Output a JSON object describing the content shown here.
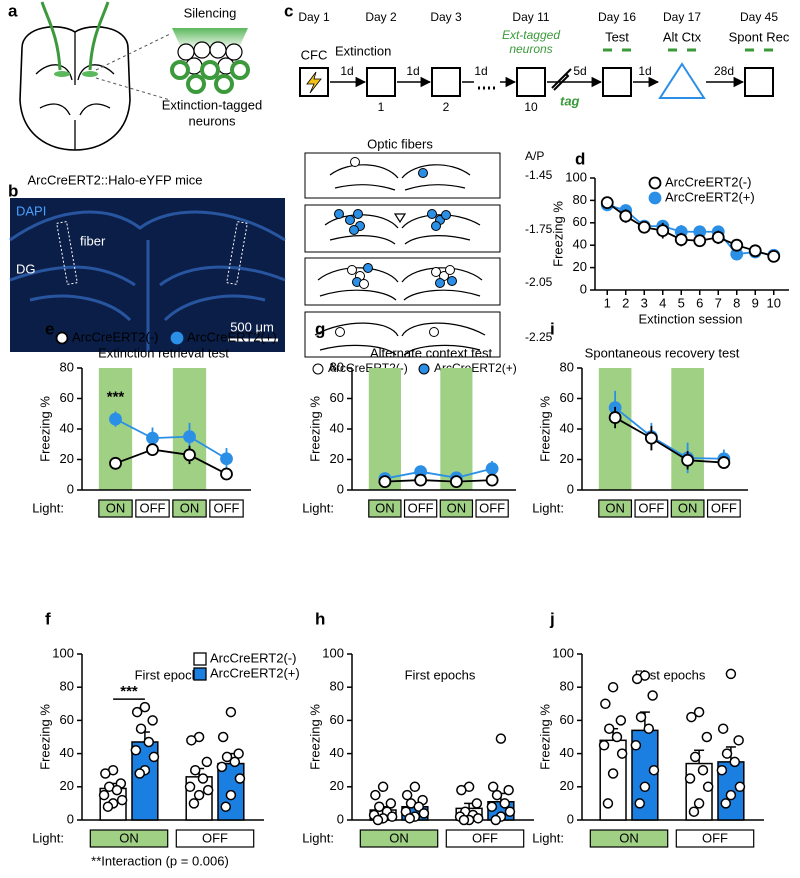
{
  "panel_a": {
    "label": "a",
    "silencing": "Silencing",
    "tagged": [
      "Extinction-tagged",
      "neurons"
    ],
    "mice": "ArcCreERT2::Halo-eYFP mice"
  },
  "panel_b": {
    "label": "b",
    "stain": "DAPI",
    "fiber": "fiber",
    "region": "DG",
    "scale": "500 μm"
  },
  "panel_c": {
    "label": "c",
    "days": [
      "Day 1",
      "Day 2",
      "Day 3",
      "Day 11",
      "Day 16",
      "Day 17",
      "Day 45"
    ],
    "cfc": "CFC",
    "extinction": "Extinction",
    "sessions": [
      "1",
      "2",
      "10"
    ],
    "ext_tagged": [
      "Ext-tagged",
      "neurons"
    ],
    "tag": "tag",
    "intervals": [
      "1d",
      "1d",
      "1d",
      "5d",
      "1d",
      "28d"
    ],
    "stages": [
      "Test",
      "Alt Ctx",
      "Spont Rec"
    ],
    "fibers_title": "Optic fibers",
    "ap": "A/P",
    "ap_levels": [
      "-1.45",
      "-1.75",
      "-2.05",
      "-2.25"
    ],
    "legend": [
      "ArcCreERT2(-)",
      "ArcCreERT2(+)"
    ]
  },
  "chart_data": [
    {
      "panel": "d",
      "type": "line",
      "ylabel": "Freezing %",
      "xlabel": "Extinction session",
      "x": [
        1,
        2,
        3,
        4,
        5,
        6,
        7,
        8,
        9,
        10
      ],
      "xlim": [
        0.5,
        10.5
      ],
      "xticks": [
        1,
        2,
        3,
        4,
        5,
        6,
        7,
        8,
        9,
        10
      ],
      "ylim": [
        0,
        100
      ],
      "yticks": [
        0,
        20,
        40,
        60,
        80,
        100
      ],
      "legend": "upper right",
      "series": [
        {
          "name": "ArcCreERT2(-)",
          "color": "#000000",
          "marker_fill": "#ffffff",
          "values": [
            78,
            66,
            56,
            53,
            45,
            44,
            47,
            40,
            35,
            30
          ],
          "errors": [
            4,
            6,
            5,
            7,
            6,
            5,
            6,
            4,
            4,
            4
          ]
        },
        {
          "name": "ArcCreERT2(+)",
          "color": "#2b8fe6",
          "marker_fill": "#2b8fe6",
          "values": [
            76,
            71,
            57,
            57,
            52,
            52,
            52,
            32,
            34,
            31
          ],
          "errors": [
            4,
            5,
            5,
            5,
            6,
            5,
            5,
            5,
            4,
            4
          ]
        }
      ]
    },
    {
      "panel": "e",
      "type": "line",
      "title": "Extinction retrieval test",
      "ylabel": "Freezing %",
      "xlabel": "Light:",
      "categories": [
        "ON",
        "OFF",
        "ON",
        "OFF"
      ],
      "category_colors": [
        "#9fd084",
        "#ffffff",
        "#9fd084",
        "#ffffff"
      ],
      "highlight": [
        0,
        2
      ],
      "highlight_color": "#9fd084",
      "ylim": [
        0,
        80
      ],
      "yticks": [
        0,
        20,
        40,
        60,
        80
      ],
      "legend": "top",
      "annotation": "***",
      "series": [
        {
          "name": "ArcCreERT2(-)",
          "color": "#000000",
          "marker_fill": "#ffffff",
          "values": [
            17.5,
            26.5,
            23,
            10.5
          ],
          "errors": [
            2.5,
            4,
            6,
            2
          ]
        },
        {
          "name": "ArcCreERT2(+)",
          "color": "#2b8fe6",
          "marker_fill": "#2b8fe6",
          "values": [
            46.5,
            34,
            35,
            20.5
          ],
          "errors": [
            5,
            7,
            9,
            7
          ]
        }
      ]
    },
    {
      "panel": "g",
      "type": "line",
      "title": "Alternate context test",
      "ylabel": "Freezing %",
      "xlabel": "Light:",
      "categories": [
        "ON",
        "OFF",
        "ON",
        "OFF"
      ],
      "category_colors": [
        "#9fd084",
        "#ffffff",
        "#9fd084",
        "#ffffff"
      ],
      "highlight": [
        0,
        2
      ],
      "highlight_color": "#9fd084",
      "ylim": [
        0,
        80
      ],
      "yticks": [
        0,
        20,
        40,
        60,
        80
      ],
      "series": [
        {
          "color": "#000000",
          "marker_fill": "#ffffff",
          "values": [
            5.5,
            6.5,
            5.5,
            6.5
          ],
          "errors": [
            1.5,
            2.5,
            2,
            2
          ]
        },
        {
          "color": "#2b8fe6",
          "marker_fill": "#2b8fe6",
          "values": [
            7.5,
            12,
            8,
            14
          ],
          "errors": [
            2,
            4,
            3,
            5
          ]
        }
      ]
    },
    {
      "panel": "i",
      "type": "line",
      "title": "Spontaneous recovery test",
      "ylabel": "Freezing %",
      "xlabel": "Light:",
      "categories": [
        "ON",
        "OFF",
        "ON",
        "OFF"
      ],
      "category_colors": [
        "#9fd084",
        "#ffffff",
        "#9fd084",
        "#ffffff"
      ],
      "highlight": [
        0,
        2
      ],
      "highlight_color": "#9fd084",
      "ylim": [
        0,
        80
      ],
      "yticks": [
        0,
        20,
        40,
        60,
        80
      ],
      "series": [
        {
          "color": "#000000",
          "marker_fill": "#ffffff",
          "values": [
            47.5,
            34,
            19.5,
            18
          ],
          "errors": [
            7,
            8,
            6,
            4
          ]
        },
        {
          "color": "#2b8fe6",
          "marker_fill": "#2b8fe6",
          "values": [
            54,
            35,
            21,
            20.5
          ],
          "errors": [
            11,
            9,
            10,
            6
          ]
        }
      ]
    },
    {
      "panel": "f",
      "type": "bar",
      "title": "First epochs",
      "ylabel": "Freezing %",
      "xlabel": "Light:",
      "categories": [
        "ON",
        "OFF"
      ],
      "category_colors": [
        "#9fd084",
        "#ffffff"
      ],
      "ylim": [
        0,
        100
      ],
      "yticks": [
        0,
        20,
        40,
        60,
        80,
        100
      ],
      "legend": "upper right",
      "annotation": "***",
      "note": "**Interaction (p = 0.006)",
      "series": [
        {
          "name": "ArcCreERT2(-)",
          "color": "#ffffff",
          "values": [
            19,
            26
          ],
          "errors": [
            3,
            5
          ],
          "points": [
            [
              30,
              28,
              22,
              20,
              18,
              15,
              12,
              10,
              8
            ],
            [
              50,
              48,
              35,
              30,
              25,
              20,
              18,
              15,
              10
            ]
          ]
        },
        {
          "name": "ArcCreERT2(+)",
          "color": "#1a7fe0",
          "values": [
            47,
            34
          ],
          "errors": [
            6,
            6
          ],
          "points": [
            [
              68,
              65,
              60,
              55,
              47,
              42,
              38,
              30,
              28
            ],
            [
              65,
              50,
              40,
              38,
              35,
              32,
              25,
              15,
              8
            ]
          ]
        }
      ]
    },
    {
      "panel": "h",
      "type": "bar",
      "title": "First epochs",
      "ylabel": "Freezing %",
      "xlabel": "Light:",
      "categories": [
        "ON",
        "OFF"
      ],
      "category_colors": [
        "#9fd084",
        "#ffffff"
      ],
      "ylim": [
        0,
        100
      ],
      "yticks": [
        0,
        20,
        40,
        60,
        80,
        100
      ],
      "series": [
        {
          "color": "#ffffff",
          "values": [
            6,
            7
          ],
          "errors": [
            2,
            3
          ],
          "points": [
            [
              20,
              15,
              10,
              8,
              5,
              3,
              2,
              1,
              0
            ],
            [
              20,
              18,
              10,
              5,
              3,
              2,
              1,
              0,
              0
            ]
          ]
        },
        {
          "color": "#1a7fe0",
          "values": [
            8,
            11
          ],
          "errors": [
            2,
            5
          ],
          "points": [
            [
              20,
              15,
              12,
              10,
              8,
              5,
              4,
              2,
              1
            ],
            [
              49,
              20,
              18,
              15,
              10,
              8,
              5,
              2,
              0
            ]
          ]
        }
      ]
    },
    {
      "panel": "j",
      "type": "bar",
      "title": "First epochs",
      "ylabel": "Freezing %",
      "xlabel": "Light:",
      "categories": [
        "ON",
        "OFF"
      ],
      "category_colors": [
        "#9fd084",
        "#ffffff"
      ],
      "ylim": [
        0,
        100
      ],
      "yticks": [
        0,
        20,
        40,
        60,
        80,
        100
      ],
      "series": [
        {
          "color": "#ffffff",
          "values": [
            48,
            34
          ],
          "errors": [
            7,
            8
          ],
          "points": [
            [
              80,
              70,
              60,
              55,
              50,
              45,
              40,
              28,
              10
            ],
            [
              65,
              62,
              50,
              38,
              30,
              25,
              20,
              10,
              5
            ]
          ]
        },
        {
          "color": "#1a7fe0",
          "values": [
            54,
            35
          ],
          "errors": [
            11,
            9
          ],
          "points": [
            [
              87,
              85,
              75,
              62,
              55,
              45,
              30,
              20,
              10
            ],
            [
              88,
              55,
              48,
              40,
              35,
              30,
              20,
              15,
              10
            ]
          ]
        }
      ]
    }
  ]
}
